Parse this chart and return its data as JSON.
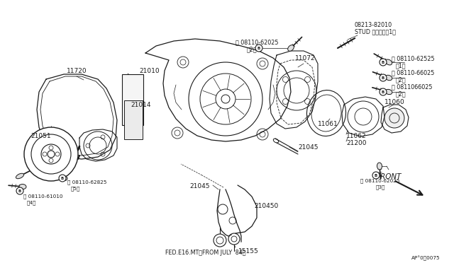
{
  "bg_color": "#ffffff",
  "line_color": "#1a1a1a",
  "fig_width": 6.4,
  "fig_height": 3.72,
  "dpi": 100,
  "labels": {
    "stud_num": "08213-82010",
    "stud_name": "STUD スタッド（1）",
    "bolt_top": "Ⓑ 08110-62025",
    "bolt_top_qty": "（2）",
    "bolt_tr": "Ⓑ 08110-62525",
    "bolt_tr_qty": "（1）",
    "bolt_mr": "Ⓑ 08110-66025",
    "bolt_mr_qty": "（2）",
    "bolt_lr": "Ⓑ 0811066025",
    "bolt_lr_qty": "（2）",
    "p11720": "11720",
    "p21010": "21010",
    "p21014": "21014",
    "p11072": "11072",
    "p11060": "11060",
    "p11061": "11061",
    "p11062": "11062",
    "p21200": "21200",
    "p21051": "21051",
    "p21045a": "21045",
    "p21045b": "21045",
    "p21045o": "210450",
    "p15155": "15155",
    "bolt_bl": "Ⓑ 08110-62825",
    "bolt_bl_qty": "（5）",
    "bolt_ll": "Ⓑ 08110-61010",
    "bolt_ll_qty": "（4）",
    "bolt_br": "Ⓑ 08110-62025",
    "bolt_br_qty": "（3）",
    "front": "FRONT",
    "fed": "FED.E16.MT（FROM JULY '84）",
    "ap": "AP°0）0075"
  }
}
